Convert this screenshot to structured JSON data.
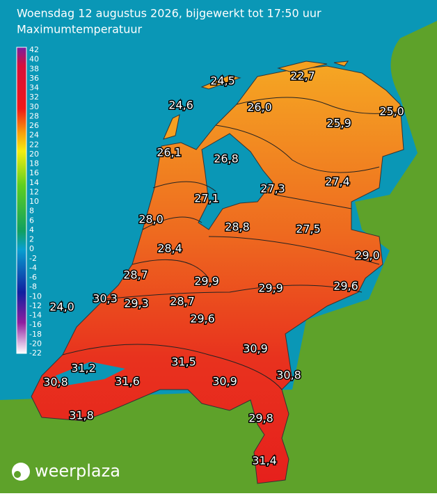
{
  "header": {
    "title": "Woensdag 12 augustus 2026, bijgewerkt tot 17:50 uur",
    "subtitle": "Maximumtemperatuur"
  },
  "legend": {
    "labels": [
      42,
      40,
      38,
      36,
      34,
      32,
      30,
      28,
      26,
      24,
      22,
      20,
      18,
      16,
      14,
      12,
      10,
      8,
      6,
      4,
      2,
      0,
      -2,
      -4,
      -6,
      -8,
      -10,
      -12,
      -14,
      -16,
      -18,
      -20,
      -22
    ]
  },
  "stations": [
    "24,5",
    "22,7",
    "24,6",
    "26,0",
    "25,0",
    "25,9",
    "26,1",
    "26,8",
    "27,3",
    "27,4",
    "27,1",
    "28,0",
    "28,8",
    "27,5",
    "28,4",
    "29,0",
    "28,7",
    "29,9",
    "29,9",
    "29,6",
    "30,3",
    "24,0",
    "29,3",
    "28,7",
    "29,6",
    "30,9",
    "31,2",
    "31,5",
    "30,8",
    "31,6",
    "30,9",
    "30,8",
    "31,8",
    "29,8",
    "31,4"
  ],
  "logo": {
    "text": "weerplaza"
  }
}
